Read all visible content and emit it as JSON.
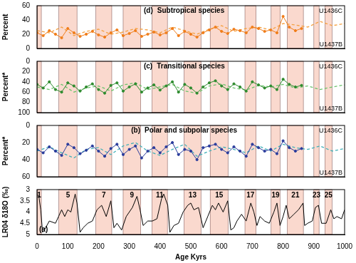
{
  "chart_data": [
    {
      "type": "line",
      "title": "Subtropical species",
      "panel_label": "(d)",
      "y_label": "Percent",
      "grid": false,
      "tick_labels": "y",
      "xlim": [
        0,
        1000
      ],
      "ylim": [
        0,
        60
      ],
      "yticks": [
        0,
        20,
        40,
        60
      ],
      "series": [
        {
          "name": "U1436C",
          "color": "#f07d1a",
          "marker": "circle",
          "line_style": "solid",
          "x": [
            0,
            20,
            40,
            60,
            80,
            100,
            120,
            140,
            160,
            180,
            200,
            220,
            240,
            260,
            280,
            300,
            320,
            340,
            360,
            380,
            400,
            420,
            440,
            460,
            480,
            500,
            520,
            540,
            560,
            580,
            600,
            620,
            640,
            660,
            680,
            700,
            720,
            740,
            760,
            780,
            800,
            820,
            840,
            860
          ],
          "values": [
            22,
            18,
            25,
            20,
            15,
            28,
            22,
            17,
            20,
            24,
            19,
            16,
            22,
            26,
            18,
            21,
            25,
            17,
            20,
            23,
            19,
            22,
            28,
            18,
            24,
            20,
            16,
            22,
            26,
            30,
            24,
            21,
            27,
            25,
            22,
            30,
            28,
            24,
            26,
            22,
            45,
            30,
            25,
            28
          ]
        },
        {
          "name": "U1437B",
          "color": "#f5a142",
          "marker": "none",
          "line_style": "dashed",
          "x": [
            0,
            40,
            80,
            120,
            160,
            200,
            240,
            280,
            320,
            360,
            400,
            440,
            480,
            520,
            560,
            600,
            640,
            680,
            720,
            760,
            800,
            840,
            880,
            920,
            960,
            1000
          ],
          "values": [
            25,
            22,
            30,
            18,
            24,
            27,
            20,
            23,
            28,
            26,
            22,
            30,
            25,
            20,
            27,
            32,
            24,
            28,
            30,
            26,
            35,
            33,
            30,
            38,
            32,
            35
          ]
        }
      ]
    },
    {
      "type": "line",
      "title": "Transitional species",
      "panel_label": "(c)",
      "y_label": "Percent*",
      "grid": false,
      "tick_labels": "y",
      "xlim": [
        0,
        1000
      ],
      "ylim": [
        100,
        0
      ],
      "yticks": [
        0,
        20,
        40,
        60,
        80,
        100
      ],
      "series": [
        {
          "name": "U1436C",
          "color": "#2e8b2e",
          "marker": "circle",
          "line_style": "solid",
          "x": [
            0,
            20,
            40,
            60,
            80,
            100,
            120,
            140,
            160,
            180,
            200,
            220,
            240,
            260,
            280,
            300,
            320,
            340,
            360,
            380,
            400,
            420,
            440,
            460,
            480,
            500,
            520,
            540,
            560,
            580,
            600,
            620,
            640,
            660,
            680,
            700,
            720,
            740,
            760,
            780,
            800,
            820,
            840,
            860
          ],
          "values": [
            45,
            52,
            40,
            55,
            60,
            42,
            48,
            58,
            50,
            44,
            55,
            62,
            47,
            42,
            58,
            50,
            44,
            60,
            52,
            46,
            56,
            48,
            40,
            60,
            45,
            52,
            62,
            50,
            42,
            38,
            48,
            55,
            44,
            50,
            58,
            40,
            46,
            52,
            48,
            55,
            35,
            45,
            50,
            47
          ]
        },
        {
          "name": "U1437B",
          "color": "#6cc36c",
          "marker": "none",
          "line_style": "dashed",
          "x": [
            0,
            40,
            80,
            120,
            160,
            200,
            240,
            280,
            320,
            360,
            400,
            440,
            480,
            520,
            560,
            600,
            640,
            680,
            720,
            760,
            800,
            840,
            880,
            920,
            960,
            1000
          ],
          "values": [
            50,
            55,
            45,
            60,
            52,
            48,
            58,
            46,
            42,
            55,
            50,
            45,
            58,
            62,
            48,
            44,
            52,
            56,
            47,
            50,
            45,
            52,
            48,
            55,
            50,
            46
          ]
        }
      ]
    },
    {
      "type": "line",
      "title": "Polar and subpolar species",
      "panel_label": "(b)",
      "y_label": "Percent*",
      "grid": false,
      "tick_labels": "y",
      "xlim": [
        0,
        1000
      ],
      "ylim": [
        60,
        0
      ],
      "yticks": [
        0,
        20,
        40,
        60
      ],
      "series": [
        {
          "name": "U1436C",
          "color": "#2a3c9c",
          "marker": "circle",
          "line_style": "solid",
          "x": [
            0,
            20,
            40,
            60,
            80,
            100,
            120,
            140,
            160,
            180,
            200,
            220,
            240,
            260,
            280,
            300,
            320,
            340,
            360,
            380,
            400,
            420,
            440,
            460,
            480,
            500,
            520,
            540,
            560,
            580,
            600,
            620,
            640,
            660,
            680,
            700,
            720,
            740,
            760,
            780,
            800,
            820,
            840,
            860
          ],
          "values": [
            28,
            32,
            25,
            30,
            35,
            22,
            26,
            33,
            29,
            24,
            30,
            36,
            27,
            22,
            34,
            28,
            24,
            38,
            30,
            26,
            32,
            25,
            20,
            34,
            28,
            30,
            40,
            26,
            24,
            22,
            28,
            32,
            25,
            30,
            36,
            22,
            26,
            30,
            28,
            33,
            18,
            26,
            30,
            27
          ]
        },
        {
          "name": "U1437B",
          "color": "#40b0b8",
          "marker": "none",
          "line_style": "dashed",
          "x": [
            0,
            40,
            80,
            120,
            160,
            200,
            240,
            280,
            320,
            360,
            400,
            440,
            480,
            520,
            560,
            600,
            640,
            680,
            720,
            760,
            800,
            840,
            880,
            920,
            960,
            1000
          ],
          "values": [
            30,
            25,
            32,
            38,
            28,
            26,
            34,
            24,
            20,
            30,
            35,
            28,
            22,
            36,
            30,
            25,
            28,
            32,
            24,
            30,
            22,
            26,
            28,
            24,
            30,
            27
          ]
        }
      ]
    },
    {
      "type": "line",
      "panel_label": "(a)",
      "x_label": "Age Kyrs",
      "y_label": "LR04 δ18O (‰)",
      "grid": false,
      "xlim": [
        0,
        1000
      ],
      "xticks": [
        0,
        100,
        200,
        300,
        400,
        500,
        600,
        700,
        800,
        900,
        1000
      ],
      "ylim": [
        5,
        3
      ],
      "yticks": [
        3,
        3.5,
        4,
        4.5,
        5
      ],
      "bands": [
        {
          "label": "1",
          "start": 0,
          "end": 14
        },
        {
          "label": "5",
          "start": 71,
          "end": 130
        },
        {
          "label": "7",
          "start": 191,
          "end": 243
        },
        {
          "label": "9",
          "start": 280,
          "end": 337
        },
        {
          "label": "11",
          "start": 374,
          "end": 424
        },
        {
          "label": "13",
          "start": 478,
          "end": 533
        },
        {
          "label": "15",
          "start": 563,
          "end": 621
        },
        {
          "label": "17",
          "start": 676,
          "end": 712
        },
        {
          "label": "19",
          "start": 761,
          "end": 790
        },
        {
          "label": "21",
          "start": 814,
          "end": 866
        },
        {
          "label": "23",
          "start": 900,
          "end": 917
        },
        {
          "label": "25",
          "start": 936,
          "end": 959
        }
      ],
      "series": [
        {
          "color": "#000000",
          "marker": "none",
          "line_style": "solid",
          "x": [
            0,
            6,
            12,
            18,
            24,
            40,
            60,
            70,
            80,
            90,
            100,
            110,
            124,
            130,
            140,
            150,
            165,
            180,
            195,
            210,
            225,
            240,
            250,
            260,
            275,
            290,
            310,
            325,
            335,
            345,
            360,
            375,
            390,
            405,
            412,
            425,
            432,
            445,
            460,
            475,
            490,
            500,
            510,
            525,
            540,
            555,
            570,
            580,
            590,
            605,
            620,
            630,
            640,
            650,
            665,
            680,
            695,
            705,
            715,
            725,
            740,
            755,
            770,
            780,
            790,
            800,
            810,
            820,
            835,
            850,
            865,
            870,
            880,
            895,
            905,
            915,
            925,
            940,
            955,
            965,
            975,
            990,
            1000
          ],
          "values": [
            3.2,
            3.3,
            3.9,
            4.9,
            4.8,
            4.4,
            4.5,
            4.2,
            3.9,
            4.2,
            3.9,
            4.0,
            3.2,
            3.6,
            4.9,
            4.7,
            4.5,
            4.4,
            3.9,
            3.7,
            4.2,
            3.5,
            4.7,
            4.5,
            4.8,
            4.2,
            3.8,
            3.3,
            3.9,
            4.6,
            4.4,
            4.4,
            4.3,
            3.4,
            3.2,
            3.7,
            4.9,
            4.6,
            4.5,
            4.0,
            3.7,
            3.6,
            3.9,
            3.8,
            4.7,
            4.2,
            3.7,
            3.9,
            3.6,
            4.0,
            3.5,
            4.8,
            4.7,
            4.4,
            4.1,
            4.4,
            3.6,
            4.0,
            4.6,
            4.2,
            4.4,
            4.5,
            4.0,
            3.6,
            4.6,
            4.2,
            3.7,
            4.3,
            4.1,
            3.9,
            3.6,
            4.6,
            4.5,
            4.4,
            3.8,
            3.7,
            4.5,
            4.5,
            3.9,
            4.3,
            4.2,
            4.3,
            3.9
          ]
        }
      ]
    }
  ]
}
